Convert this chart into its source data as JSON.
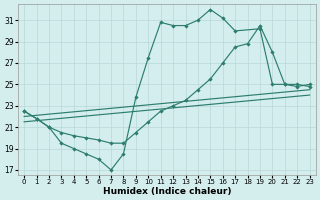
{
  "xlabel": "Humidex (Indice chaleur)",
  "background_color": "#d4eeee",
  "grid_color": "#b8d8d8",
  "line_color": "#2d7d6e",
  "xlim": [
    -0.5,
    23.5
  ],
  "ylim": [
    16.5,
    32.5
  ],
  "xticks": [
    0,
    1,
    2,
    3,
    4,
    5,
    6,
    7,
    8,
    9,
    10,
    11,
    12,
    13,
    14,
    15,
    16,
    17,
    18,
    19,
    20,
    21,
    22,
    23
  ],
  "yticks": [
    17,
    19,
    21,
    23,
    25,
    27,
    29,
    31
  ],
  "line1_x": [
    0,
    1,
    2,
    3,
    4,
    5,
    6,
    7,
    8,
    9,
    10,
    11,
    12,
    13,
    14,
    15,
    16,
    17,
    19,
    20,
    21,
    22,
    23
  ],
  "line1_y": [
    22.5,
    21.8,
    21.0,
    19.5,
    19.0,
    18.5,
    18.0,
    17.0,
    18.5,
    23.8,
    27.5,
    30.8,
    30.5,
    30.5,
    31.0,
    32.0,
    31.2,
    30.0,
    30.2,
    25.0,
    25.0,
    24.8,
    25.0
  ],
  "line2_x": [
    0,
    1,
    2,
    3,
    4,
    5,
    6,
    7,
    8,
    9,
    10,
    11,
    12,
    13,
    14,
    15,
    16,
    17,
    18,
    19,
    20,
    21,
    22,
    23
  ],
  "line2_y": [
    22.5,
    21.8,
    21.0,
    20.5,
    20.2,
    20.0,
    19.8,
    19.5,
    19.5,
    20.5,
    21.5,
    22.5,
    23.0,
    23.5,
    24.5,
    25.5,
    27.0,
    28.5,
    28.8,
    30.5,
    28.0,
    25.0,
    25.0,
    24.8
  ],
  "line3_x": [
    0,
    23
  ],
  "line3_y": [
    22.0,
    24.5
  ],
  "line4_x": [
    0,
    23
  ],
  "line4_y": [
    21.5,
    24.0
  ]
}
